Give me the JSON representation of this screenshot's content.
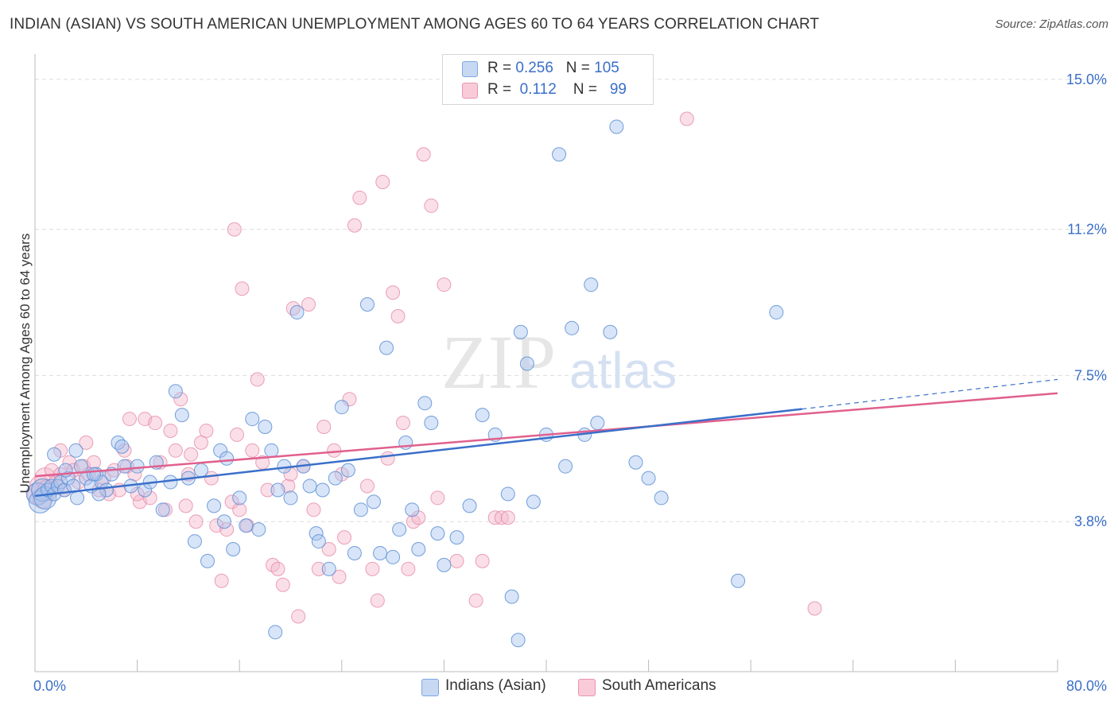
{
  "title": "INDIAN (ASIAN) VS SOUTH AMERICAN UNEMPLOYMENT AMONG AGES 60 TO 64 YEARS CORRELATION CHART",
  "source": "Source: ZipAtlas.com",
  "watermark": {
    "zip": "ZIP",
    "atlas": "atlas"
  },
  "legend_top": {
    "rows": [
      {
        "r_label": "R = ",
        "r_value": "0.256",
        "n_label": "N = ",
        "n_value": "105"
      },
      {
        "r_label": "R = ",
        "r_value": "0.112",
        "n_label": "N = ",
        "n_value": "99"
      }
    ]
  },
  "legend_bottom": [
    "Indians (Asian)",
    "South Americans"
  ],
  "colors": {
    "blue_fill": "#a9c4ee",
    "blue_stroke": "#5b8fd6",
    "blue_line": "#3a6fc9",
    "pink_fill": "#f5b7cb",
    "pink_stroke": "#e68aa8",
    "pink_line": "#e0608e",
    "tick_label": "#3a6fc9",
    "grid": "#dddddd"
  },
  "chart_data": {
    "type": "scatter",
    "title": "INDIAN (ASIAN) VS SOUTH AMERICAN UNEMPLOYMENT AMONG AGES 60 TO 64 YEARS CORRELATION CHART",
    "xlabel": "",
    "ylabel": "Unemployment Among Ages 60 to 64 years",
    "xlim": [
      0,
      80
    ],
    "ylim": [
      0,
      15.5
    ],
    "x_tick_labels": [
      "0.0%",
      "80.0%"
    ],
    "y_ticks": [
      3.8,
      7.5,
      11.2,
      15.0
    ],
    "y_tick_labels": [
      "3.8%",
      "7.5%",
      "11.2%",
      "15.0%"
    ],
    "grid": "horizontal dashed",
    "legend_position": "top-center",
    "series": [
      {
        "name": "Indians (Asian)",
        "R": 0.256,
        "N": 105,
        "trend": {
          "x0": 0,
          "y0": 4.45,
          "x1": 60,
          "y1": 6.65,
          "dashed_to_x": 80,
          "dashed_to_y": 7.4
        },
        "points": [
          [
            0.2,
            4.5
          ],
          [
            0.4,
            4.3
          ],
          [
            0.6,
            4.6
          ],
          [
            0.8,
            4.4
          ],
          [
            1.0,
            4.6
          ],
          [
            1.3,
            4.7
          ],
          [
            1.5,
            4.5
          ],
          [
            1.8,
            4.7
          ],
          [
            2.0,
            4.8
          ],
          [
            2.3,
            4.6
          ],
          [
            2.6,
            4.9
          ],
          [
            3.0,
            4.7
          ],
          [
            3.3,
            4.4
          ],
          [
            3.6,
            5.2
          ],
          [
            4.0,
            4.9
          ],
          [
            4.4,
            4.7
          ],
          [
            4.8,
            5.0
          ],
          [
            5.2,
            4.8
          ],
          [
            5.6,
            4.6
          ],
          [
            6.0,
            5.0
          ],
          [
            6.5,
            5.8
          ],
          [
            7.0,
            5.2
          ],
          [
            7.5,
            4.7
          ],
          [
            8.0,
            5.2
          ],
          [
            8.6,
            4.6
          ],
          [
            9.0,
            4.8
          ],
          [
            9.5,
            5.3
          ],
          [
            10.0,
            4.1
          ],
          [
            10.6,
            4.8
          ],
          [
            11.0,
            7.1
          ],
          [
            11.5,
            6.5
          ],
          [
            12.0,
            4.9
          ],
          [
            12.5,
            3.3
          ],
          [
            13.0,
            5.1
          ],
          [
            13.5,
            2.8
          ],
          [
            14.0,
            4.2
          ],
          [
            14.5,
            5.6
          ],
          [
            15.0,
            5.4
          ],
          [
            15.5,
            3.1
          ],
          [
            16.0,
            4.4
          ],
          [
            16.5,
            3.7
          ],
          [
            17.0,
            6.4
          ],
          [
            17.5,
            3.6
          ],
          [
            18.0,
            6.2
          ],
          [
            18.5,
            5.6
          ],
          [
            19.0,
            4.6
          ],
          [
            19.5,
            5.2
          ],
          [
            20.0,
            4.4
          ],
          [
            20.5,
            9.1
          ],
          [
            21.0,
            5.2
          ],
          [
            21.5,
            4.7
          ],
          [
            22.0,
            3.5
          ],
          [
            22.5,
            4.6
          ],
          [
            23.0,
            2.6
          ],
          [
            23.5,
            4.9
          ],
          [
            24.0,
            6.7
          ],
          [
            24.5,
            5.1
          ],
          [
            25.0,
            3.0
          ],
          [
            25.5,
            4.1
          ],
          [
            26.0,
            9.3
          ],
          [
            26.5,
            4.3
          ],
          [
            27.0,
            3.0
          ],
          [
            27.5,
            8.2
          ],
          [
            28.0,
            2.9
          ],
          [
            28.5,
            3.6
          ],
          [
            29.0,
            5.8
          ],
          [
            29.5,
            4.1
          ],
          [
            30.0,
            3.1
          ],
          [
            30.5,
            6.8
          ],
          [
            31.0,
            6.3
          ],
          [
            31.5,
            3.5
          ],
          [
            32.0,
            2.7
          ],
          [
            33.0,
            3.4
          ],
          [
            34.0,
            4.2
          ],
          [
            35.0,
            6.5
          ],
          [
            36.0,
            6.0
          ],
          [
            37.0,
            4.5
          ],
          [
            37.3,
            1.9
          ],
          [
            37.8,
            0.8
          ],
          [
            38.0,
            8.6
          ],
          [
            38.5,
            7.8
          ],
          [
            39.0,
            4.3
          ],
          [
            40.0,
            6.0
          ],
          [
            41.0,
            13.1
          ],
          [
            41.5,
            5.2
          ],
          [
            42.0,
            8.7
          ],
          [
            43.0,
            6.0
          ],
          [
            43.5,
            9.8
          ],
          [
            44.0,
            6.3
          ],
          [
            45.0,
            8.6
          ],
          [
            45.5,
            13.8
          ],
          [
            47.0,
            5.3
          ],
          [
            48.0,
            4.9
          ],
          [
            49.0,
            4.4
          ],
          [
            55.0,
            2.3
          ],
          [
            58.0,
            9.1
          ],
          [
            1.5,
            5.5
          ],
          [
            2.4,
            5.1
          ],
          [
            3.2,
            5.6
          ],
          [
            4.6,
            5.0
          ],
          [
            5.0,
            4.5
          ],
          [
            18.8,
            1.0
          ],
          [
            14.8,
            3.8
          ],
          [
            22.2,
            3.3
          ],
          [
            6.8,
            5.7
          ]
        ]
      },
      {
        "name": "South Americans",
        "R": 0.112,
        "N": 99,
        "trend": {
          "x0": 0,
          "y0": 4.95,
          "x1": 80,
          "y1": 7.05
        },
        "points": [
          [
            0.2,
            4.5
          ],
          [
            0.4,
            4.7
          ],
          [
            0.6,
            4.4
          ],
          [
            0.8,
            4.9
          ],
          [
            1.0,
            4.6
          ],
          [
            1.3,
            5.1
          ],
          [
            1.6,
            4.8
          ],
          [
            2.0,
            5.0
          ],
          [
            2.3,
            4.6
          ],
          [
            2.7,
            5.3
          ],
          [
            3.0,
            5.1
          ],
          [
            3.4,
            4.8
          ],
          [
            3.8,
            5.2
          ],
          [
            4.2,
            5.0
          ],
          [
            4.6,
            5.3
          ],
          [
            5.0,
            4.6
          ],
          [
            5.4,
            4.9
          ],
          [
            5.8,
            4.5
          ],
          [
            6.2,
            5.1
          ],
          [
            6.6,
            4.6
          ],
          [
            7.0,
            5.6
          ],
          [
            7.4,
            6.4
          ],
          [
            7.8,
            5.0
          ],
          [
            8.2,
            4.3
          ],
          [
            8.6,
            6.4
          ],
          [
            9.0,
            4.4
          ],
          [
            9.4,
            6.3
          ],
          [
            9.8,
            5.3
          ],
          [
            10.2,
            4.1
          ],
          [
            10.6,
            6.1
          ],
          [
            11.0,
            5.6
          ],
          [
            11.4,
            6.9
          ],
          [
            11.8,
            4.2
          ],
          [
            12.2,
            5.5
          ],
          [
            12.6,
            3.8
          ],
          [
            13.0,
            5.8
          ],
          [
            13.4,
            6.1
          ],
          [
            13.8,
            4.9
          ],
          [
            14.2,
            3.7
          ],
          [
            14.6,
            2.3
          ],
          [
            15.0,
            3.6
          ],
          [
            15.4,
            4.3
          ],
          [
            15.8,
            6.0
          ],
          [
            16.2,
            9.7
          ],
          [
            16.6,
            3.7
          ],
          [
            17.0,
            5.6
          ],
          [
            17.4,
            7.4
          ],
          [
            17.8,
            5.3
          ],
          [
            18.2,
            4.6
          ],
          [
            18.6,
            2.7
          ],
          [
            19.0,
            2.6
          ],
          [
            19.4,
            2.2
          ],
          [
            19.8,
            4.7
          ],
          [
            20.2,
            9.2
          ],
          [
            20.6,
            1.4
          ],
          [
            21.0,
            5.2
          ],
          [
            21.4,
            9.3
          ],
          [
            21.8,
            4.1
          ],
          [
            22.2,
            2.6
          ],
          [
            22.6,
            6.2
          ],
          [
            23.0,
            3.1
          ],
          [
            23.4,
            5.6
          ],
          [
            23.8,
            2.4
          ],
          [
            24.2,
            3.4
          ],
          [
            24.6,
            6.9
          ],
          [
            25.0,
            11.3
          ],
          [
            25.4,
            12.0
          ],
          [
            26.0,
            4.7
          ],
          [
            26.4,
            2.6
          ],
          [
            26.8,
            1.8
          ],
          [
            27.2,
            12.4
          ],
          [
            27.6,
            5.4
          ],
          [
            28.0,
            9.6
          ],
          [
            28.4,
            9.0
          ],
          [
            28.8,
            6.3
          ],
          [
            29.2,
            2.6
          ],
          [
            29.6,
            3.8
          ],
          [
            30.0,
            3.9
          ],
          [
            30.4,
            13.1
          ],
          [
            31.0,
            11.8
          ],
          [
            31.5,
            4.4
          ],
          [
            32.0,
            9.8
          ],
          [
            33.0,
            2.8
          ],
          [
            34.5,
            1.8
          ],
          [
            35.0,
            2.8
          ],
          [
            36.0,
            3.9
          ],
          [
            36.5,
            3.9
          ],
          [
            37.0,
            3.9
          ],
          [
            51.0,
            14.0
          ],
          [
            61.0,
            1.6
          ],
          [
            15.6,
            11.2
          ],
          [
            7.2,
            5.2
          ],
          [
            2.0,
            5.6
          ],
          [
            4.0,
            5.8
          ],
          [
            8.0,
            4.5
          ],
          [
            12.0,
            5.0
          ],
          [
            16.0,
            4.1
          ],
          [
            20.0,
            5.0
          ],
          [
            24.0,
            5.0
          ]
        ]
      }
    ]
  }
}
